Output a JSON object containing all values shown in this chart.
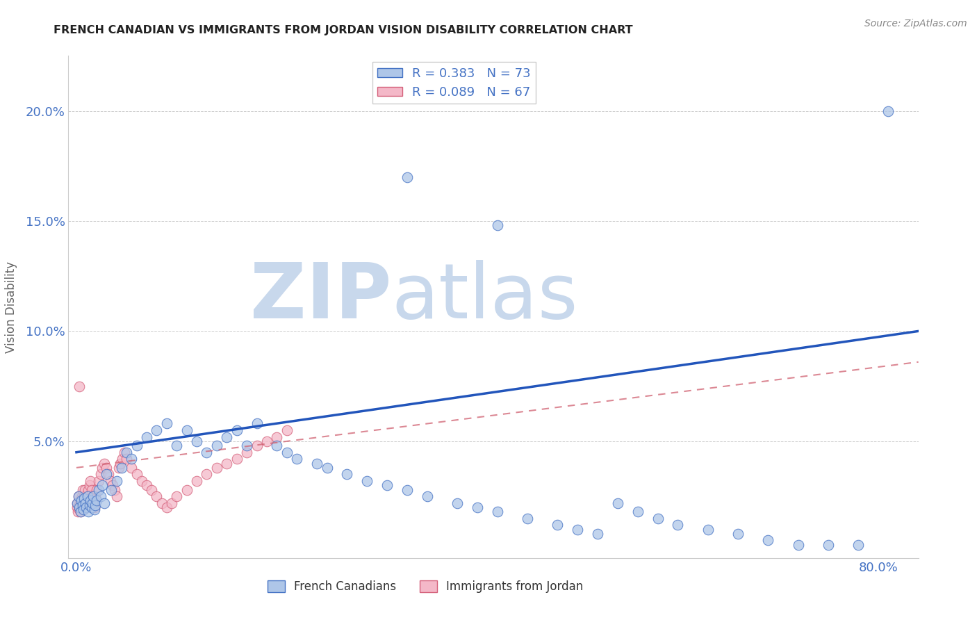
{
  "title": "FRENCH CANADIAN VS IMMIGRANTS FROM JORDAN VISION DISABILITY CORRELATION CHART",
  "source": "Source: ZipAtlas.com",
  "ylabel": "Vision Disability",
  "xlim": [
    -0.008,
    0.84
  ],
  "ylim": [
    -0.003,
    0.225
  ],
  "x_tick_positions": [
    0.0,
    0.1,
    0.2,
    0.3,
    0.4,
    0.5,
    0.6,
    0.7,
    0.8
  ],
  "x_tick_labels": [
    "0.0%",
    "",
    "",
    "",
    "",
    "",
    "",
    "",
    "80.0%"
  ],
  "y_tick_positions": [
    0.0,
    0.05,
    0.1,
    0.15,
    0.2
  ],
  "y_tick_labels": [
    "",
    "5.0%",
    "10.0%",
    "15.0%",
    "20.0%"
  ],
  "legend_label1": "French Canadians",
  "legend_label2": "Immigrants from Jordan",
  "blue_fill": "#aec6e8",
  "blue_edge": "#4472c4",
  "pink_fill": "#f4b8c8",
  "pink_edge": "#d4607a",
  "blue_line_color": "#2255bb",
  "pink_line_color": "#d06070",
  "watermark_zip": "ZIP",
  "watermark_atlas": "atlas",
  "watermark_color": "#c8d8ec",
  "blue_line_x0": 0.0,
  "blue_line_y0": 0.045,
  "blue_line_x1": 0.84,
  "blue_line_y1": 0.1,
  "pink_line_x0": 0.0,
  "pink_line_y0": 0.038,
  "pink_line_x1": 0.84,
  "pink_line_y1": 0.086,
  "blue_x": [
    0.001,
    0.002,
    0.003,
    0.004,
    0.005,
    0.006,
    0.007,
    0.008,
    0.009,
    0.01,
    0.011,
    0.012,
    0.013,
    0.014,
    0.015,
    0.016,
    0.017,
    0.018,
    0.019,
    0.02,
    0.022,
    0.024,
    0.026,
    0.028,
    0.03,
    0.035,
    0.04,
    0.045,
    0.05,
    0.055,
    0.06,
    0.07,
    0.08,
    0.09,
    0.1,
    0.11,
    0.12,
    0.13,
    0.14,
    0.15,
    0.16,
    0.17,
    0.18,
    0.2,
    0.21,
    0.22,
    0.24,
    0.25,
    0.27,
    0.29,
    0.31,
    0.33,
    0.35,
    0.38,
    0.4,
    0.42,
    0.45,
    0.48,
    0.5,
    0.52,
    0.54,
    0.56,
    0.58,
    0.6,
    0.63,
    0.66,
    0.69,
    0.72,
    0.75,
    0.78,
    0.81,
    0.33,
    0.42
  ],
  "blue_y": [
    0.022,
    0.025,
    0.02,
    0.018,
    0.023,
    0.021,
    0.019,
    0.024,
    0.022,
    0.02,
    0.025,
    0.018,
    0.021,
    0.023,
    0.02,
    0.022,
    0.025,
    0.019,
    0.021,
    0.023,
    0.028,
    0.025,
    0.03,
    0.022,
    0.035,
    0.028,
    0.032,
    0.038,
    0.045,
    0.042,
    0.048,
    0.052,
    0.055,
    0.058,
    0.048,
    0.055,
    0.05,
    0.045,
    0.048,
    0.052,
    0.055,
    0.048,
    0.058,
    0.048,
    0.045,
    0.042,
    0.04,
    0.038,
    0.035,
    0.032,
    0.03,
    0.028,
    0.025,
    0.022,
    0.02,
    0.018,
    0.015,
    0.012,
    0.01,
    0.008,
    0.022,
    0.018,
    0.015,
    0.012,
    0.01,
    0.008,
    0.005,
    0.003,
    0.003,
    0.003,
    0.2,
    0.17,
    0.148
  ],
  "pink_x": [
    0.0005,
    0.001,
    0.0015,
    0.002,
    0.0025,
    0.003,
    0.0035,
    0.004,
    0.0045,
    0.005,
    0.0055,
    0.006,
    0.0065,
    0.007,
    0.0075,
    0.008,
    0.0085,
    0.009,
    0.0095,
    0.01,
    0.011,
    0.012,
    0.013,
    0.014,
    0.015,
    0.016,
    0.017,
    0.018,
    0.019,
    0.02,
    0.022,
    0.024,
    0.026,
    0.028,
    0.03,
    0.032,
    0.034,
    0.036,
    0.038,
    0.04,
    0.042,
    0.044,
    0.046,
    0.048,
    0.05,
    0.055,
    0.06,
    0.065,
    0.07,
    0.075,
    0.08,
    0.085,
    0.09,
    0.095,
    0.1,
    0.11,
    0.12,
    0.13,
    0.14,
    0.15,
    0.16,
    0.17,
    0.18,
    0.19,
    0.2,
    0.21,
    0.003
  ],
  "pink_y": [
    0.02,
    0.022,
    0.018,
    0.025,
    0.021,
    0.019,
    0.023,
    0.02,
    0.018,
    0.022,
    0.025,
    0.028,
    0.022,
    0.019,
    0.021,
    0.025,
    0.028,
    0.022,
    0.02,
    0.023,
    0.025,
    0.028,
    0.03,
    0.032,
    0.028,
    0.025,
    0.022,
    0.02,
    0.025,
    0.028,
    0.032,
    0.035,
    0.038,
    0.04,
    0.038,
    0.035,
    0.032,
    0.03,
    0.028,
    0.025,
    0.038,
    0.04,
    0.042,
    0.045,
    0.042,
    0.038,
    0.035,
    0.032,
    0.03,
    0.028,
    0.025,
    0.022,
    0.02,
    0.022,
    0.025,
    0.028,
    0.032,
    0.035,
    0.038,
    0.04,
    0.042,
    0.045,
    0.048,
    0.05,
    0.052,
    0.055,
    0.075
  ]
}
